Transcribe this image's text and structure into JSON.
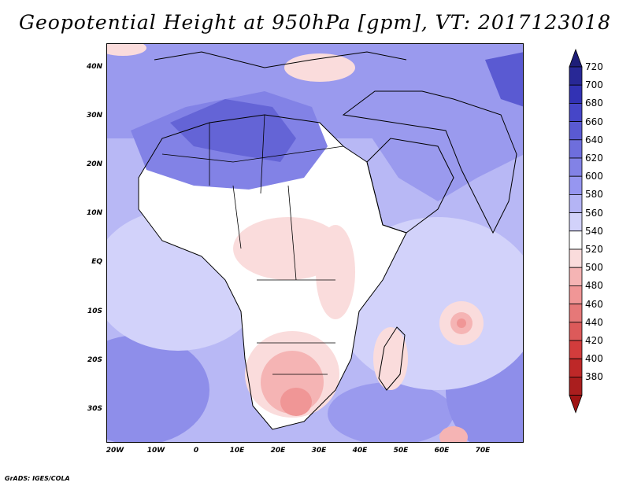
{
  "title": "Geopotential Height at 950hPa [gpm], VT: 2017123018",
  "footer": "GrADS: IGES/COLA",
  "lat_labels": [
    "40N",
    "30N",
    "20N",
    "10N",
    "EQ",
    "10S",
    "20S",
    "30S"
  ],
  "lon_labels": [
    "20W",
    "10W",
    "0",
    "10E",
    "20E",
    "30E",
    "40E",
    "50E",
    "60E",
    "70E"
  ],
  "colorbar": {
    "labels": [
      "720",
      "700",
      "680",
      "660",
      "640",
      "620",
      "600",
      "580",
      "560",
      "540",
      "520",
      "500",
      "480",
      "460",
      "440",
      "420",
      "400",
      "380"
    ],
    "colors": [
      "#282896",
      "#3232b4",
      "#4646c8",
      "#5a5ad2",
      "#6e6edc",
      "#8282e6",
      "#9696f0",
      "#b4b4f5",
      "#d2d2fa",
      "#ffffff",
      "#fadcdc",
      "#f5b4b4",
      "#f09696",
      "#e67878",
      "#dc5a5a",
      "#d23c3c",
      "#be2828",
      "#aa1e1e"
    ],
    "top_color": "#1e1e78",
    "bottom_color": "#a01414"
  },
  "map_colors": {
    "ocean_background": "#b8b8f5",
    "land_low": "#d2d2fa",
    "land_mid": "#ffffff",
    "land_warm": "#fadcdc",
    "land_hot": "#f5b4b4",
    "sahara": "#7070dc",
    "sahara_core": "#5a5ad2",
    "asia": "#8c8ce8"
  }
}
